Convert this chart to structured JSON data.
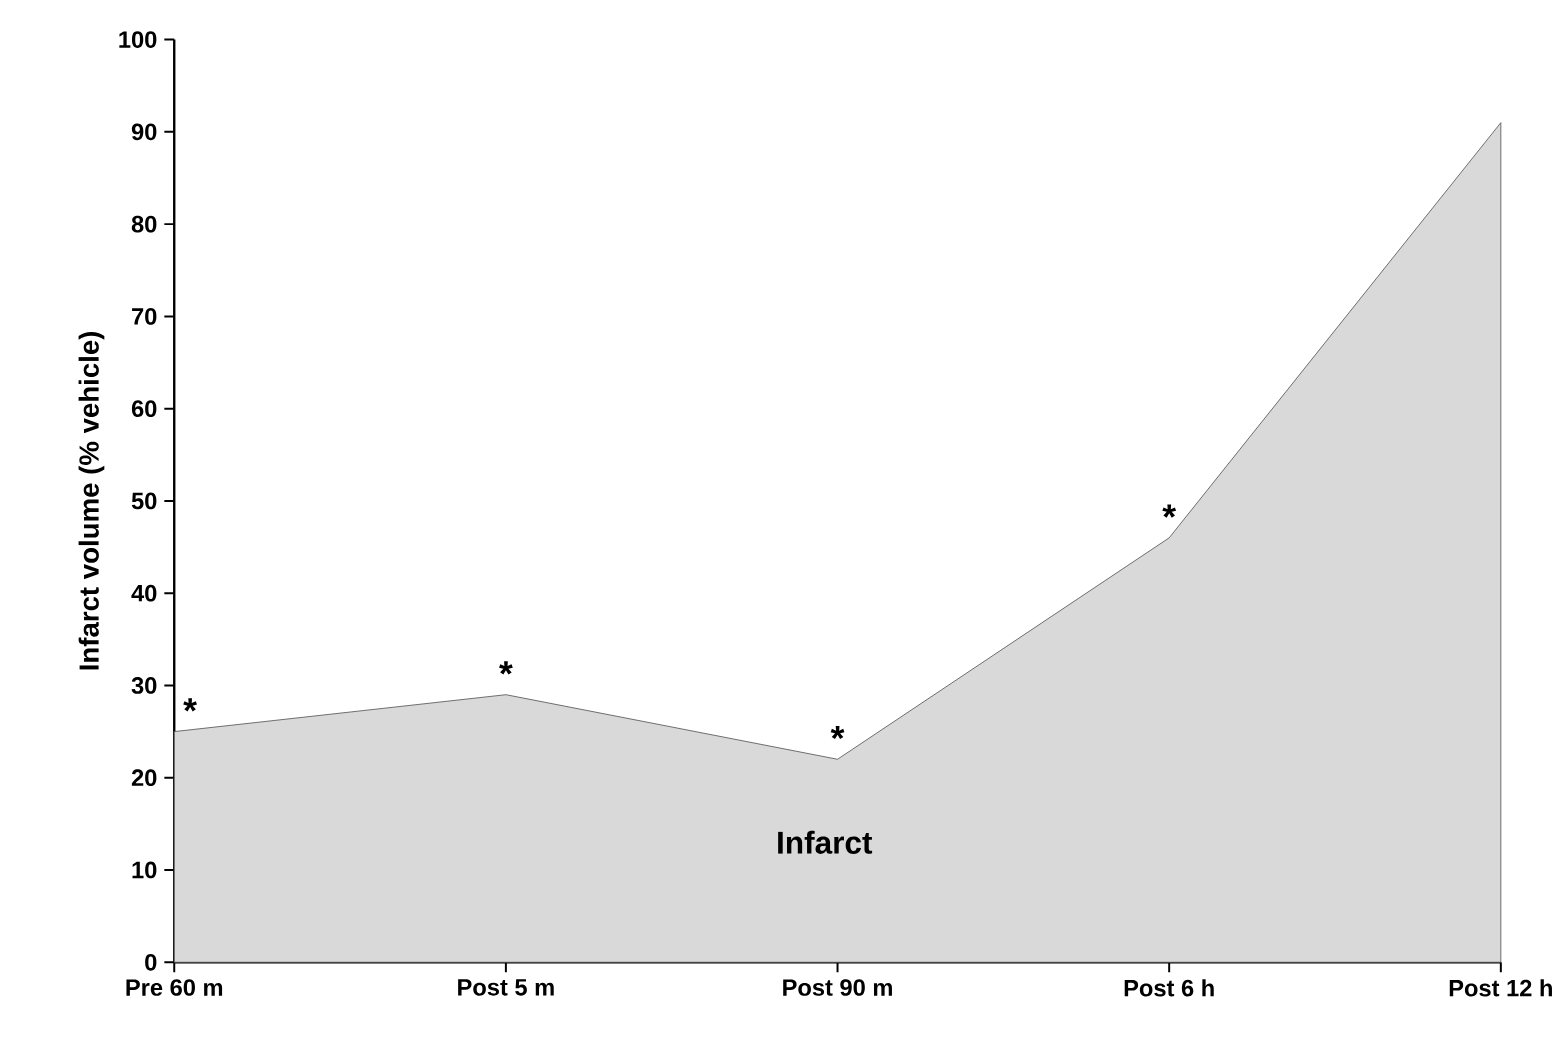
{
  "chart_data": {
    "type": "area",
    "ylabel": "Infarct volume (% vehicle)",
    "categories": [
      "Pre 60 m",
      "Post 5 m",
      "Post 90 m",
      "Post 6 h",
      "Post 12 h"
    ],
    "values": [
      25,
      29,
      22,
      46,
      91
    ],
    "color": "#d9d9d9",
    "ylim": [
      0,
      100
    ],
    "yticks": [
      0,
      10,
      20,
      30,
      40,
      50,
      60,
      70,
      80,
      90,
      100
    ],
    "grid": false,
    "annotations": [
      {
        "text": "*",
        "x": "Pre 60 m",
        "y": 25
      },
      {
        "text": "*",
        "x": "Post 5 m",
        "y": 29
      },
      {
        "text": "*",
        "x": "Post 90 m",
        "y": 22
      },
      {
        "text": "*",
        "x": "Post 6 h",
        "y": 46
      },
      "Infarct"
    ]
  }
}
